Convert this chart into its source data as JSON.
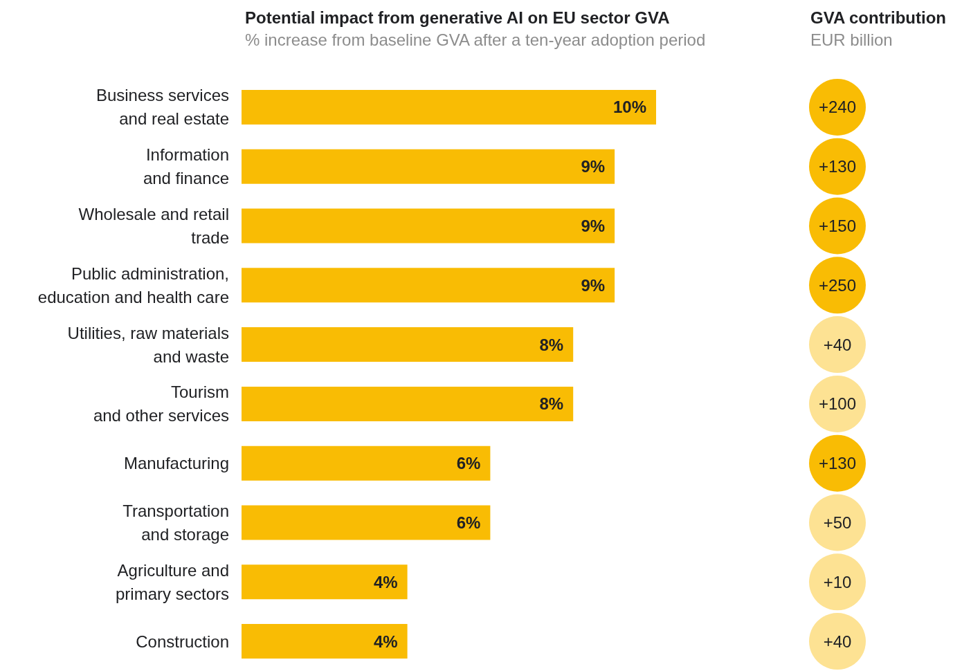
{
  "chart_data": [
    {
      "type": "bar",
      "orientation": "horizontal",
      "title": "Potential impact from generative AI on EU sector GVA",
      "subtitle": "% increase from baseline GVA after a ten-year adoption period",
      "categories": [
        "Business services\nand real estate",
        "Information\nand finance",
        "Wholesale and retail\ntrade",
        "Public administration,\neducation and health care",
        "Utilities, raw materials\nand waste",
        "Tourism\nand other services",
        "Manufacturing",
        "Transportation\nand storage",
        "Agriculture and\nprimary sectors",
        "Construction"
      ],
      "values": [
        10,
        9,
        9,
        9,
        8,
        8,
        6,
        6,
        4,
        4
      ],
      "value_labels": [
        "10%",
        "9%",
        "9%",
        "9%",
        "8%",
        "8%",
        "6%",
        "6%",
        "4%",
        "4%"
      ],
      "color": "#f9bc04",
      "xlim": [
        0,
        10
      ],
      "tick_labels": "y"
    },
    {
      "type": "other",
      "title": "GVA contribution",
      "subtitle": "EUR billion",
      "categories": [
        null,
        null,
        null,
        null,
        null,
        null,
        null,
        null,
        null,
        null
      ],
      "values": [
        240,
        130,
        150,
        250,
        40,
        100,
        130,
        50,
        10,
        40
      ],
      "value_labels": [
        "+240",
        "+130",
        "+150",
        "+250",
        "+40",
        "+100",
        "+130",
        "+50",
        "+10",
        "+40"
      ],
      "colors": [
        "#f9bc04",
        "#f9bc04",
        "#f9bc04",
        "#f9bc04",
        "#fde293",
        "#fde293",
        "#f9bc04",
        "#fde293",
        "#fde293",
        "#fde293"
      ]
    }
  ]
}
